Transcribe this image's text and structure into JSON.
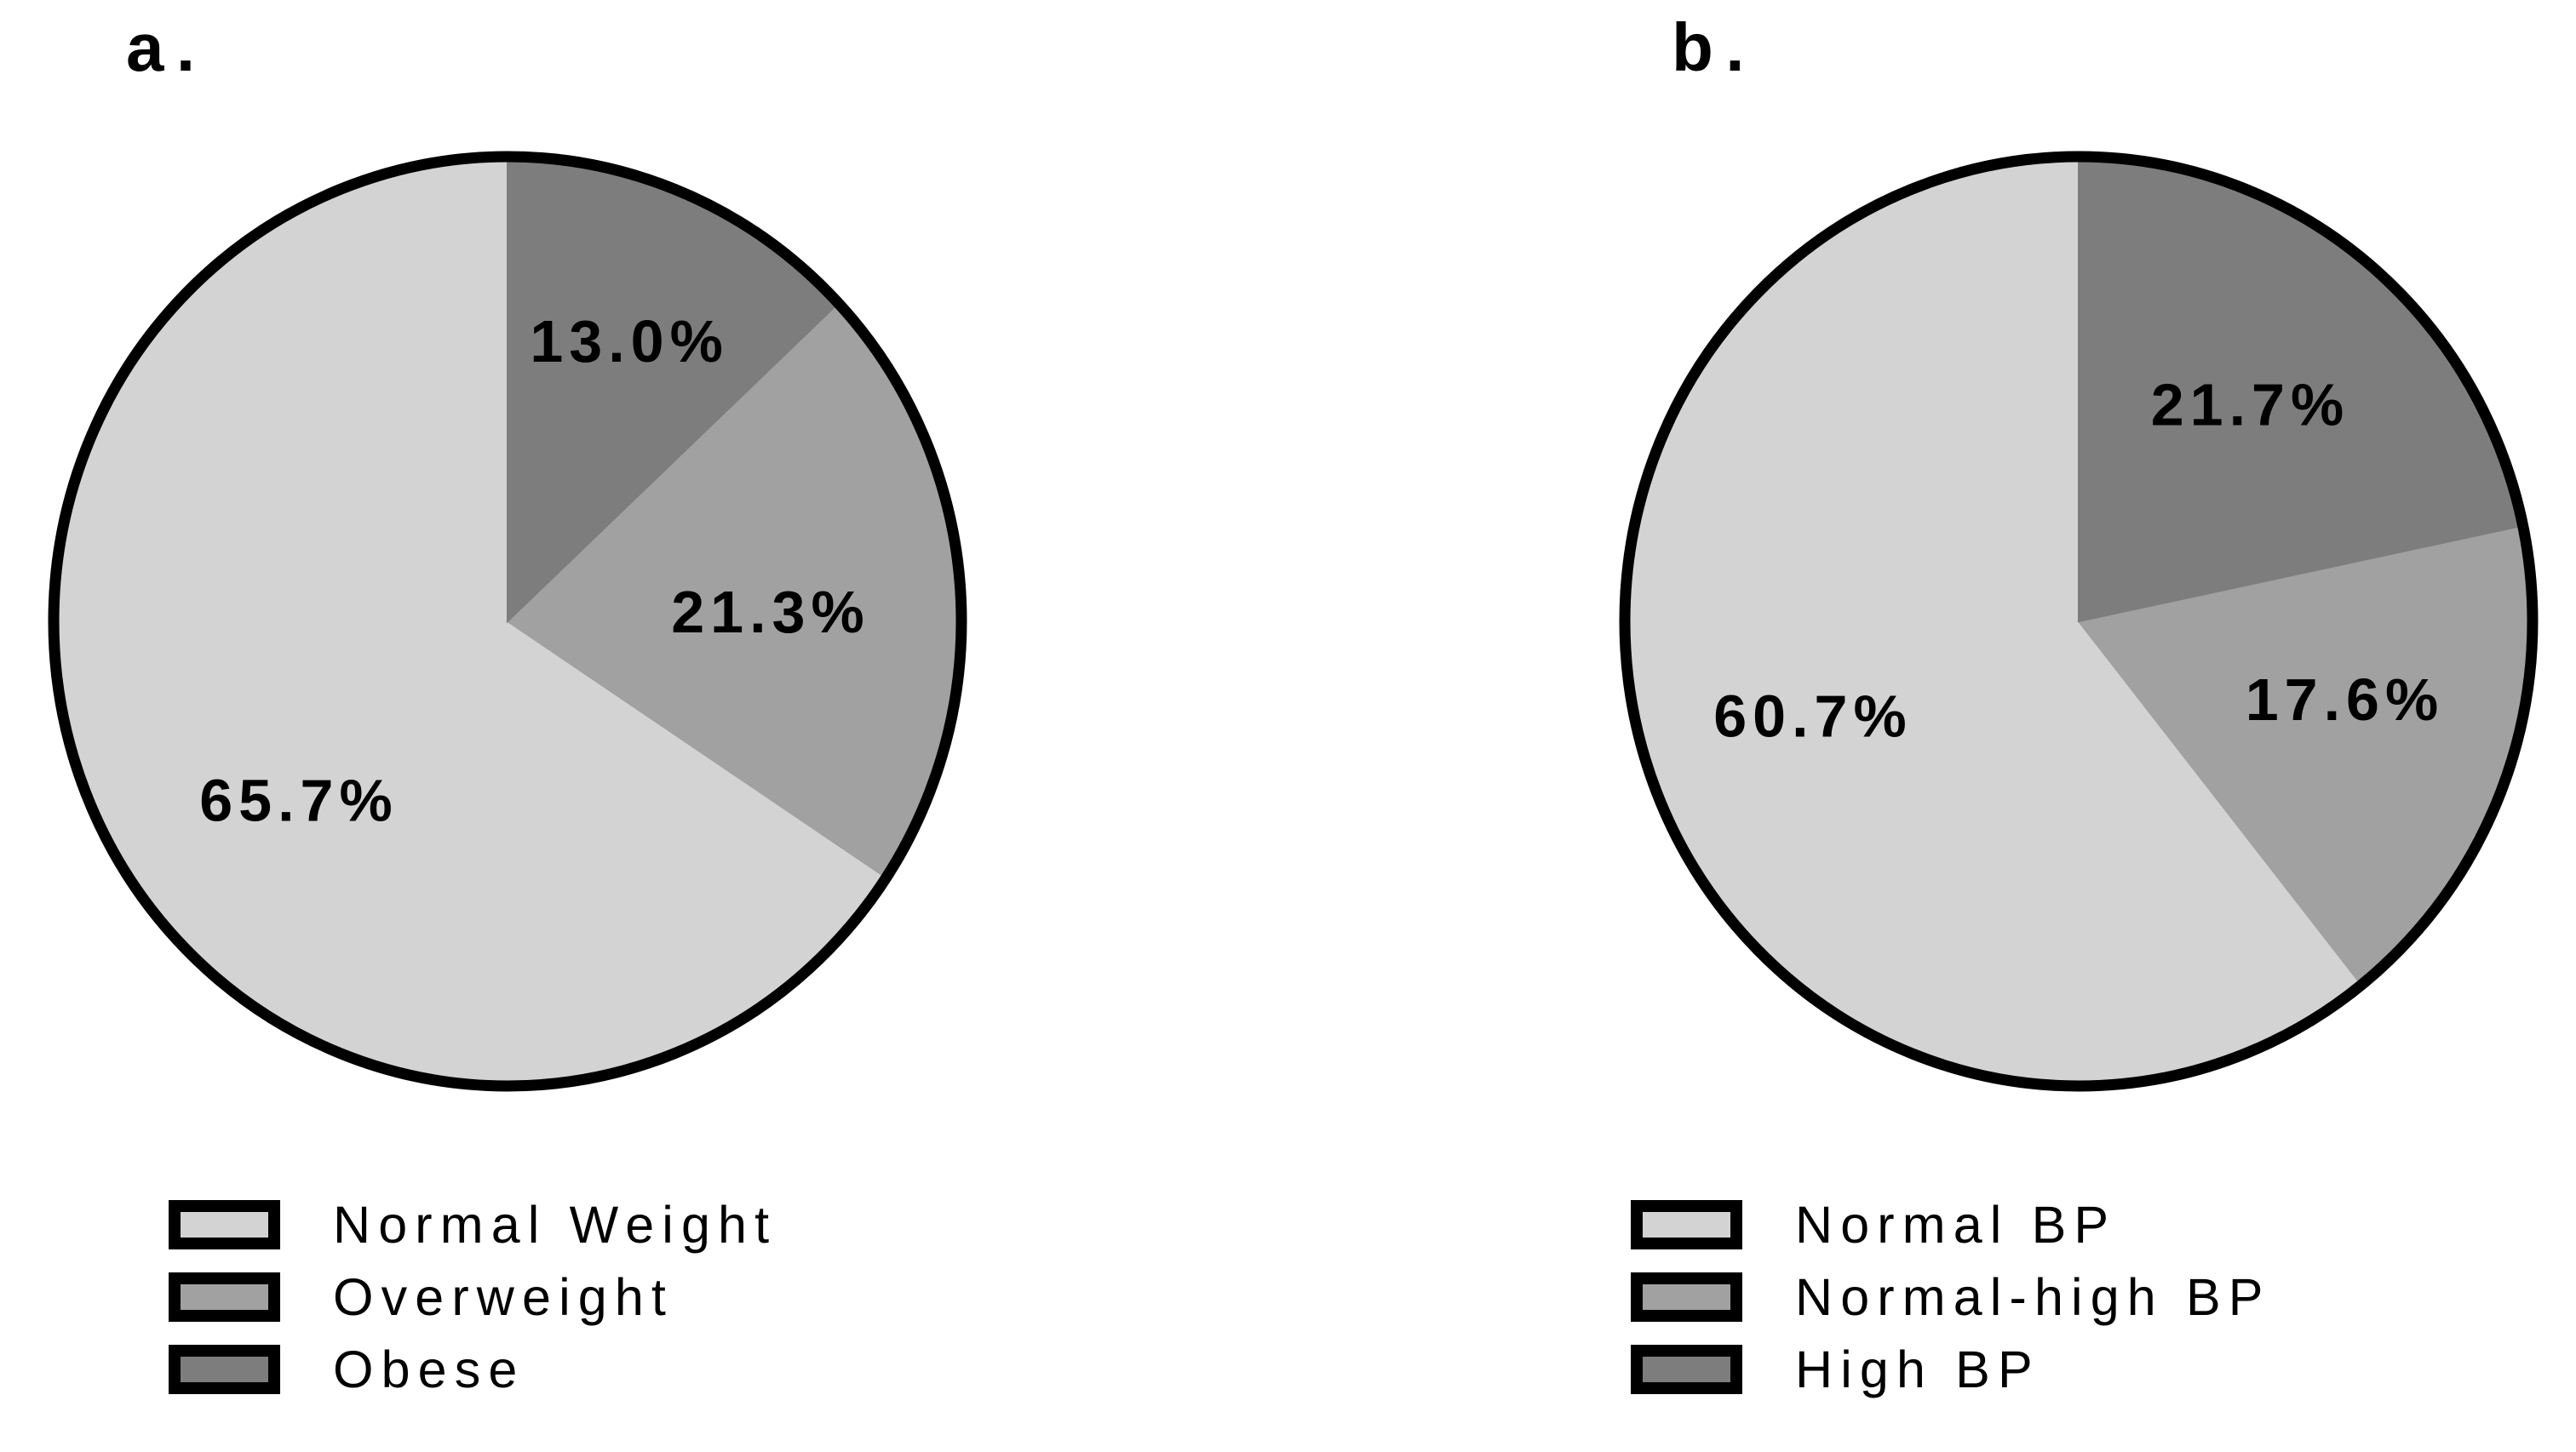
{
  "page": {
    "background": "#ffffff"
  },
  "chart_data": [
    {
      "type": "pie",
      "panel_label": "a.",
      "start_angle_deg": 0,
      "direction": "counterclockwise",
      "outline_color": "#000000",
      "legend_position": "below-left",
      "slices": [
        {
          "label": "Normal Weight",
          "value": 65.7,
          "display": "65.7%",
          "color": "#d3d3d3"
        },
        {
          "label": "Overweight",
          "value": 21.3,
          "display": "21.3%",
          "color": "#a1a1a1"
        },
        {
          "label": "Obese",
          "value": 13.0,
          "display": "13.0%",
          "color": "#7d7d7d"
        }
      ]
    },
    {
      "type": "pie",
      "panel_label": "b.",
      "start_angle_deg": 0,
      "direction": "counterclockwise",
      "outline_color": "#000000",
      "legend_position": "below-left",
      "slices": [
        {
          "label": "Normal BP",
          "value": 60.7,
          "display": "60.7%",
          "color": "#d3d3d3"
        },
        {
          "label": "Normal-high BP",
          "value": 17.6,
          "display": "17.6%",
          "color": "#a1a1a1"
        },
        {
          "label": "High BP",
          "value": 21.7,
          "display": "21.7%",
          "color": "#7d7d7d"
        }
      ]
    }
  ]
}
